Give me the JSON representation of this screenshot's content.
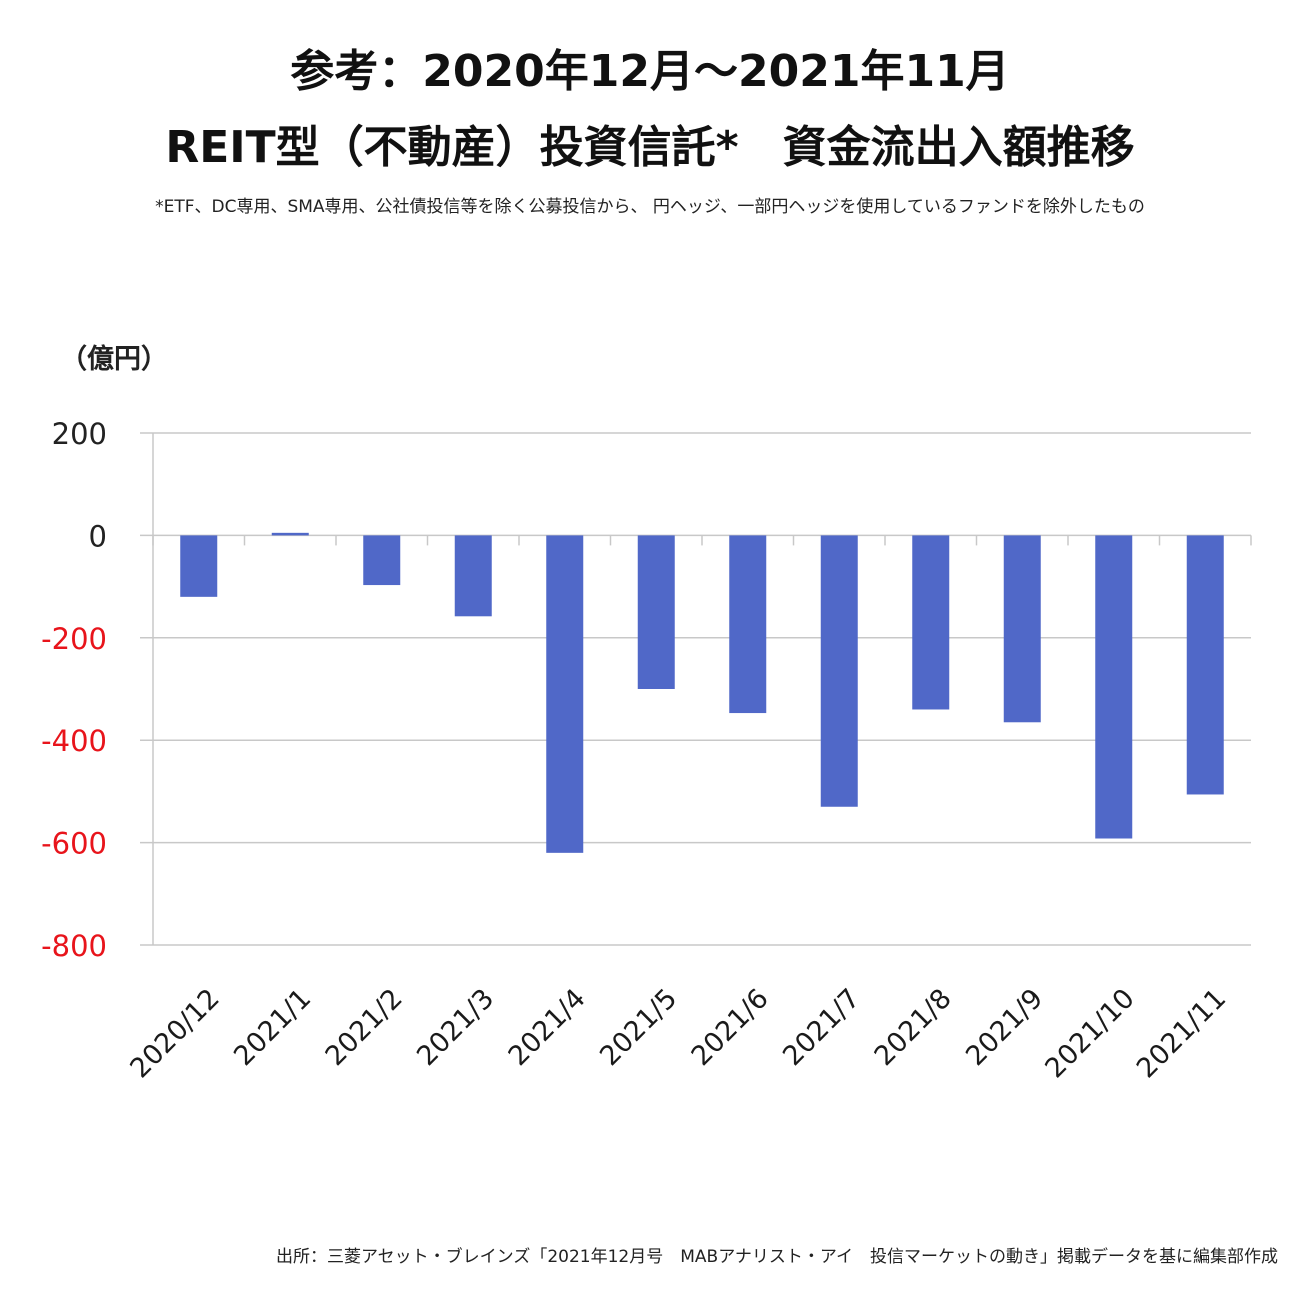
{
  "header": {
    "title_line1": "参考：2020年12月～2021年11月",
    "title_line2": "REIT型（不動産）投資信託*　資金流出入額推移",
    "note": "*ETF、DC専用、SMA専用、公社債投信等を除く公募投信から、 円ヘッジ、一部円ヘッジを使用しているファンドを除外したもの"
  },
  "chart_data": {
    "type": "bar",
    "ylabel": "（億円）",
    "categories": [
      "2020/12",
      "2021/1",
      "2021/2",
      "2021/3",
      "2021/4",
      "2021/5",
      "2021/6",
      "2021/7",
      "2021/8",
      "2021/9",
      "2021/10",
      "2021/11"
    ],
    "values": [
      -120,
      5,
      -97,
      -158,
      -620,
      -300,
      -347,
      -530,
      -340,
      -365,
      -592,
      -506
    ],
    "ylim": [
      -800,
      200
    ],
    "yticks": [
      200,
      0,
      -200,
      -400,
      -600,
      -800
    ],
    "ytick_labels": [
      "200",
      "0",
      "-200",
      "-400",
      "-600",
      "-800"
    ],
    "grid": true,
    "colors": {
      "bar": "#5068c8",
      "negative_tick": "#e8141b",
      "positive_tick": "#222222",
      "grid": "#c8c8c8"
    }
  },
  "footer": {
    "source": "出所：三菱アセット・ブレインズ「2021年12月号　MABアナリスト・アイ　投信マーケットの動き」掲載データを基に編集部作成"
  }
}
